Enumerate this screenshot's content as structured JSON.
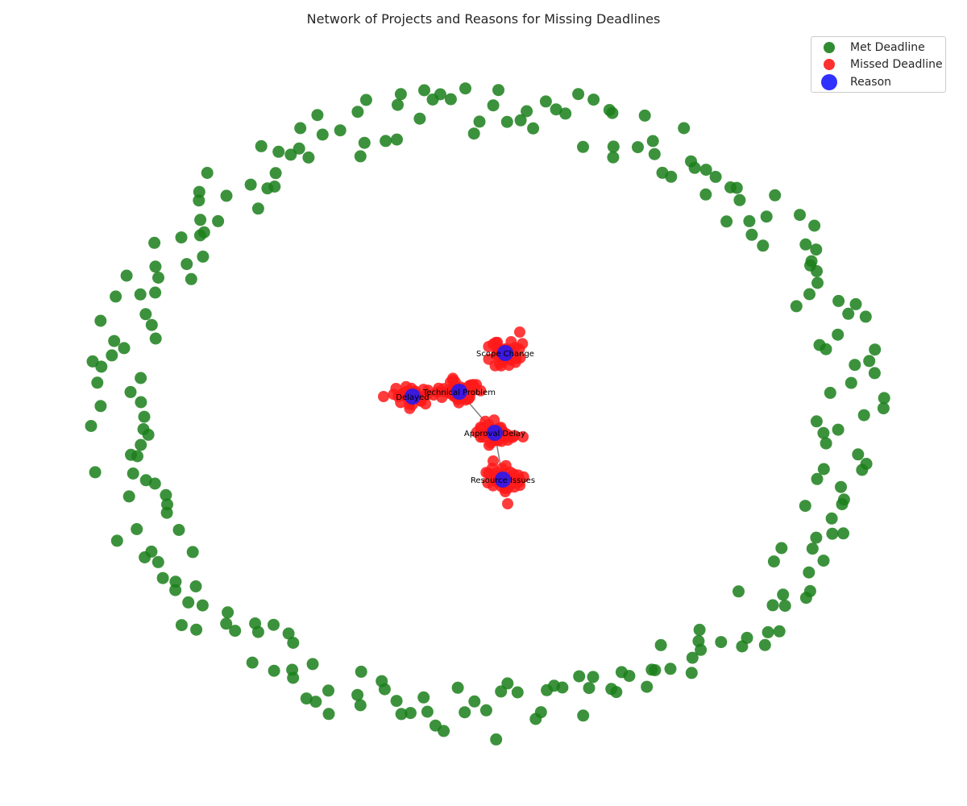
{
  "title": "Network of Projects and Reasons for Missing Deadlines",
  "colors": {
    "met": "#1a7f1a",
    "missed": "#ff1a1a",
    "reason": "#1a1aff",
    "edge": "#808080",
    "label": "#000000"
  },
  "legend": {
    "placement": "top-right",
    "items": [
      {
        "label": "Met Deadline",
        "color": "#1a7f1a",
        "size": "small"
      },
      {
        "label": "Missed Deadline",
        "color": "#ff1a1a",
        "size": "small"
      },
      {
        "label": "Reason",
        "color": "#1a1aff",
        "size": "large"
      }
    ]
  },
  "chart_data": {
    "type": "network",
    "title": "Network of Projects and Reasons for Missing Deadlines",
    "node_categories": [
      "Met Deadline",
      "Missed Deadline",
      "Reason"
    ],
    "met_deadline_count": 250,
    "reasons": [
      {
        "name": "Scope Change",
        "missed_projects": 40
      },
      {
        "name": "Technical Problem",
        "missed_projects": 45
      },
      {
        "name": "Delayed",
        "missed_projects": 35
      },
      {
        "name": "Approval Delay",
        "missed_projects": 45
      },
      {
        "name": "Resource Issues",
        "missed_projects": 40
      }
    ],
    "connections": [
      {
        "from": "Technical Problem",
        "to": "Approval Delay"
      },
      {
        "from": "Approval Delay",
        "to": "Resource Issues"
      }
    ]
  }
}
